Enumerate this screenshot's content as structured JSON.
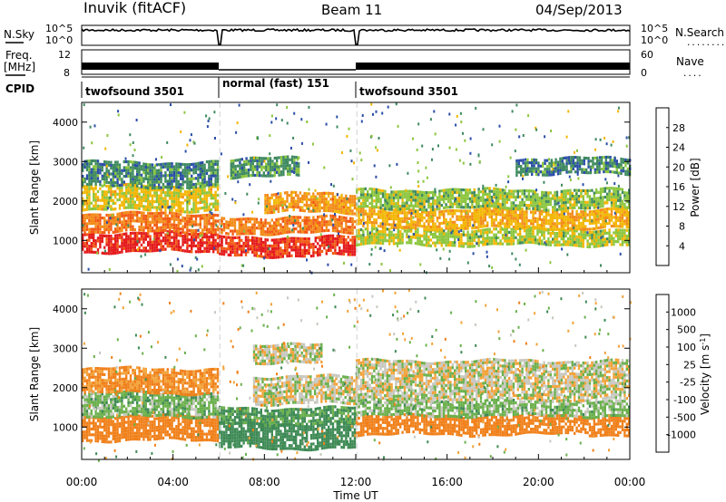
{
  "header": {
    "station": "Inuvik (fitACF)",
    "beam": "Beam 11",
    "date": "04/Sep/2013"
  },
  "strip_nsky": {
    "left_label": "N.Sky",
    "right_label": "N.Search",
    "ticks_left": [
      "10^5",
      "10^0"
    ],
    "ticks_right": [
      "10^5",
      "10^0"
    ],
    "legend_line": "........"
  },
  "strip_freq": {
    "left_label": "Freq.",
    "left_unit": "[MHz]",
    "right_label": "Nave",
    "ticks_left": [
      "12",
      "8"
    ],
    "ticks_right": [
      "60",
      "0"
    ],
    "legend_line": "...."
  },
  "cpid": {
    "label": "CPID",
    "segments": [
      {
        "label": "twofsound 3501",
        "start_hour": 0,
        "end_hour": 6.0
      },
      {
        "label": "normal (fast) 151",
        "start_hour": 6.0,
        "end_hour": 12.0
      },
      {
        "label": "twofsound 3501",
        "start_hour": 12.0,
        "end_hour": 24.0
      }
    ]
  },
  "power_panel": {
    "ylabel": "Slant Range [km]",
    "yticks": [
      "1000",
      "2000",
      "3000",
      "4000"
    ],
    "colorbar_label": "Power [dB]",
    "colorbar_ticks": [
      "4",
      "8",
      "12",
      "16",
      "20",
      "24",
      "28"
    ],
    "colorbar_colors": [
      "#1010ff",
      "#2b4ea8",
      "#3f8a60",
      "#8cc63f",
      "#f2b705",
      "#f28c1a",
      "#f25a14",
      "#e41a1c"
    ]
  },
  "velocity_panel": {
    "ylabel": "Slant Range [km]",
    "yticks": [
      "1000",
      "2000",
      "3000",
      "4000"
    ],
    "colorbar_label": "Velocity [m s",
    "colorbar_unit_sup": "-1",
    "colorbar_ticks": [
      "1000",
      "500",
      "100",
      "25",
      "-25",
      "-100",
      "-500",
      "-1000"
    ],
    "colorbar_colors": [
      "#2040b0",
      "#3070a0",
      "#3e8a55",
      "#6ab04c",
      "#c8c8c0",
      "#f2a33a",
      "#f0801a",
      "#e8501a",
      "#e41a1c"
    ]
  },
  "xaxis": {
    "label": "Time UT",
    "ticks": [
      "00:00",
      "04:00",
      "08:00",
      "12:00",
      "16:00",
      "20:00",
      "00:00"
    ]
  },
  "chart_data": [
    {
      "type": "heatmap",
      "title": "Power",
      "xlabel": "Time UT",
      "ylabel": "Slant Range [km]",
      "x_range_hours": [
        0,
        24
      ],
      "ylim": [
        180,
        4500
      ],
      "colorbar": {
        "label": "Power [dB]",
        "range": [
          0,
          30
        ]
      },
      "bands": [
        {
          "t0": 0.0,
          "t1": 6.0,
          "r0": 700,
          "r1": 1200,
          "value": 28
        },
        {
          "t0": 0.0,
          "t1": 6.0,
          "r0": 1200,
          "r1": 1700,
          "value": 22
        },
        {
          "t0": 0.0,
          "t1": 6.0,
          "r0": 1800,
          "r1": 2400,
          "value": 16
        },
        {
          "t0": 0.0,
          "t1": 6.0,
          "r0": 2400,
          "r1": 3000,
          "value": 9
        },
        {
          "t0": 6.0,
          "t1": 12.0,
          "r0": 600,
          "r1": 1100,
          "value": 27
        },
        {
          "t0": 6.0,
          "t1": 12.0,
          "r0": 1200,
          "r1": 1600,
          "value": 22
        },
        {
          "t0": 8.0,
          "t1": 12.0,
          "r0": 1700,
          "r1": 2200,
          "value": 20
        },
        {
          "t0": 6.5,
          "t1": 9.5,
          "r0": 2600,
          "r1": 3100,
          "value": 10
        },
        {
          "t0": 12.0,
          "t1": 24.0,
          "r0": 900,
          "r1": 1300,
          "value": 14
        },
        {
          "t0": 12.0,
          "t1": 24.0,
          "r0": 1300,
          "r1": 1800,
          "value": 18
        },
        {
          "t0": 12.0,
          "t1": 24.0,
          "r0": 1800,
          "r1": 2300,
          "value": 13
        },
        {
          "t0": 19.0,
          "t1": 24.0,
          "r0": 2700,
          "r1": 3100,
          "value": 9
        }
      ]
    },
    {
      "type": "heatmap",
      "title": "Velocity",
      "xlabel": "Time UT",
      "ylabel": "Slant Range [km]",
      "x_range_hours": [
        0,
        24
      ],
      "ylim": [
        180,
        4500
      ],
      "colorbar": {
        "label": "Velocity [m s-1]",
        "range": [
          -1000,
          1000
        ]
      },
      "bands": [
        {
          "t0": 0.0,
          "t1": 6.0,
          "r0": 700,
          "r1": 1300,
          "value": -300
        },
        {
          "t0": 0.0,
          "t1": 6.0,
          "r0": 1300,
          "r1": 1900,
          "value": 60
        },
        {
          "t0": 0.0,
          "t1": 6.0,
          "r0": 1900,
          "r1": 2500,
          "value": -120
        },
        {
          "t0": 6.0,
          "t1": 12.0,
          "r0": 500,
          "r1": 1100,
          "value": 200
        },
        {
          "t0": 6.0,
          "t1": 12.0,
          "r0": 1100,
          "r1": 1500,
          "value": 120
        },
        {
          "t0": 7.5,
          "t1": 12.0,
          "r0": 1600,
          "r1": 2300,
          "value": 0
        },
        {
          "t0": 7.5,
          "t1": 10.5,
          "r0": 2600,
          "r1": 3100,
          "value": 0
        },
        {
          "t0": 12.0,
          "t1": 24.0,
          "r0": 800,
          "r1": 1300,
          "value": -300
        },
        {
          "t0": 12.0,
          "t1": 24.0,
          "r0": 1300,
          "r1": 1700,
          "value": 50
        },
        {
          "t0": 12.0,
          "t1": 24.0,
          "r0": 1700,
          "r1": 2700,
          "value": 0
        }
      ]
    }
  ]
}
